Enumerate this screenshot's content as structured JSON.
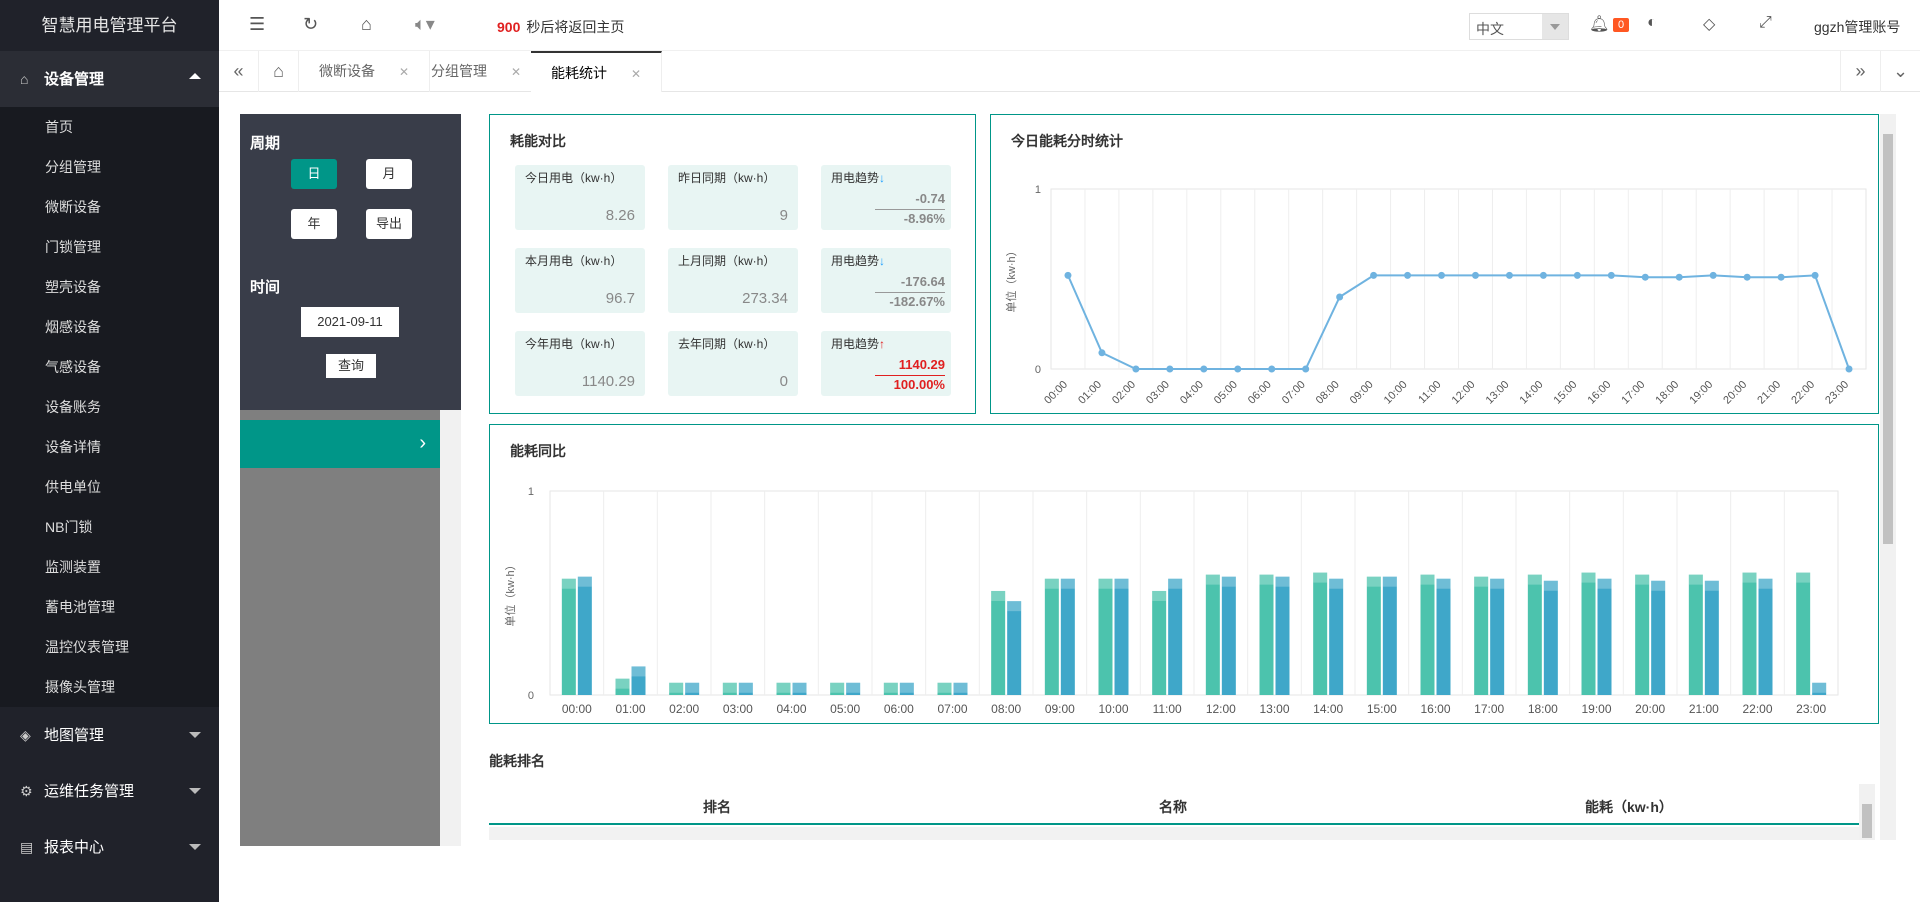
{
  "app_title": "智慧用电管理平台",
  "sidebar": {
    "groups": [
      {
        "label": "设备管理",
        "icon": "home-icon"
      },
      {
        "label": "地图管理",
        "icon": "cube-icon"
      },
      {
        "label": "运维任务管理",
        "icon": "gear-icon"
      },
      {
        "label": "报表中心",
        "icon": "report-icon"
      }
    ],
    "items": [
      "首页",
      "分组管理",
      "微断设备",
      "门锁管理",
      "塑壳设备",
      "烟感设备",
      "气感设备",
      "设备账务",
      "设备详情",
      "供电单位",
      "NB门锁",
      "监测装置",
      "蓄电池管理",
      "温控仪表管理",
      "摄像头管理"
    ]
  },
  "header": {
    "countdown_num": "900",
    "countdown_text": "秒后将返回主页",
    "language": "中文",
    "notify_count": "0",
    "user": "ggzh管理账号"
  },
  "tabs": [
    {
      "label": "微断设备"
    },
    {
      "label": "分组管理"
    },
    {
      "label": "能耗统计"
    }
  ],
  "filter": {
    "period_label": "周期",
    "day": "日",
    "month": "月",
    "year": "年",
    "export": "导出",
    "time_label": "时间",
    "date": "2021-09-11",
    "query": "查询"
  },
  "compare": {
    "title": "耗能对比",
    "today_label": "今日用电（kw·h）",
    "today": "8.26",
    "yesterday_label": "昨日同期（kw·h）",
    "yesterday": "9",
    "trend_label": "用电趋势",
    "day_diff": "-0.74",
    "day_pct": "-8.96%",
    "month_label": "本月用电（kw·h）",
    "month": "96.7",
    "last_month_label": "上月同期（kw·h）",
    "last_month": "273.34",
    "month_diff": "-176.64",
    "month_pct": "-182.67%",
    "year_label": "今年用电（kw·h）",
    "year": "1140.29",
    "last_year_label": "去年同期（kw·h）",
    "last_year": "0",
    "year_diff": "1140.29",
    "year_pct": "100.00%"
  },
  "line_title": "今日能耗分时统计",
  "bar_title": "能耗同比",
  "rank": {
    "title": "能耗排名",
    "col_rank": "排名",
    "col_name": "名称",
    "col_energy": "能耗（kw·h）"
  },
  "colors": {
    "accent": "#009688",
    "line": "#6fb3e0",
    "bar_a": "#4cc3ad",
    "bar_b": "#3fa7c9"
  },
  "chart_data": [
    {
      "type": "line",
      "title": "今日能耗分时统计",
      "ylabel": "单位（kw·h）",
      "ylim": [
        0,
        1
      ],
      "x": [
        "00:00",
        "01:00",
        "02:00",
        "03:00",
        "04:00",
        "05:00",
        "06:00",
        "07:00",
        "08:00",
        "09:00",
        "10:00",
        "11:00",
        "12:00",
        "13:00",
        "14:00",
        "15:00",
        "16:00",
        "17:00",
        "18:00",
        "19:00",
        "20:00",
        "21:00",
        "22:00",
        "23:00"
      ],
      "series": [
        {
          "values": [
            0.52,
            0.09,
            0,
            0,
            0,
            0,
            0,
            0,
            0.4,
            0.52,
            0.52,
            0.52,
            0.52,
            0.52,
            0.52,
            0.52,
            0.52,
            0.51,
            0.51,
            0.52,
            0.51,
            0.51,
            0.52,
            0
          ]
        }
      ],
      "grid": true
    },
    {
      "type": "bar",
      "title": "能耗同比",
      "ylabel": "单位（kw·h）",
      "ylim": [
        0,
        1
      ],
      "categories": [
        "00:00",
        "01:00",
        "02:00",
        "03:00",
        "04:00",
        "05:00",
        "06:00",
        "07:00",
        "08:00",
        "09:00",
        "10:00",
        "11:00",
        "12:00",
        "13:00",
        "14:00",
        "15:00",
        "16:00",
        "17:00",
        "18:00",
        "19:00",
        "20:00",
        "21:00",
        "22:00",
        "23:00"
      ],
      "series": [
        {
          "values": [
            0.57,
            0.08,
            0.06,
            0.06,
            0.06,
            0.06,
            0.06,
            0.06,
            0.51,
            0.57,
            0.57,
            0.51,
            0.59,
            0.59,
            0.6,
            0.58,
            0.59,
            0.58,
            0.59,
            0.6,
            0.59,
            0.59,
            0.6,
            0.6
          ]
        },
        {
          "values": [
            0.58,
            0.14,
            0.06,
            0.06,
            0.06,
            0.06,
            0.06,
            0.06,
            0.46,
            0.57,
            0.57,
            0.57,
            0.58,
            0.58,
            0.57,
            0.58,
            0.57,
            0.57,
            0.56,
            0.57,
            0.56,
            0.56,
            0.57,
            0.06
          ]
        }
      ],
      "grid": true
    }
  ]
}
